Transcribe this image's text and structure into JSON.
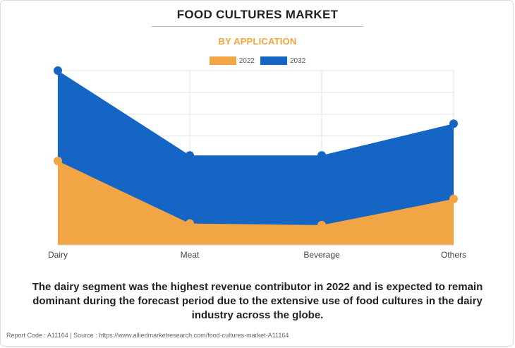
{
  "header": {
    "title": "FOOD CULTURES MARKET",
    "subtitle": "BY APPLICATION"
  },
  "colors": {
    "subtitle": "#f2a43a",
    "series_2022": "#f2a544",
    "series_2032": "#1565c4",
    "grid": "#e3e3e3"
  },
  "chart_data": {
    "type": "area",
    "categories": [
      "Dairy",
      "Meat",
      "Beverage",
      "Others"
    ],
    "series": [
      {
        "name": "2022",
        "values": [
          106,
          27,
          25,
          58
        ]
      },
      {
        "name": "2032",
        "values": [
          220,
          113,
          113,
          153
        ]
      }
    ],
    "ylim": [
      0,
      220
    ],
    "grid": true,
    "legend": "top-center",
    "y_axis_labels_shown": false
  },
  "caption": "The dairy segment was the highest revenue contributor in 2022 and is expected to remain dominant during the forecast period due to the extensive use of food cultures in the dairy industry across the globe.",
  "footer": "Report Code : A11164  |  Source : https://www.alliedmarketresearch.com/food-cultures-market-A11164"
}
